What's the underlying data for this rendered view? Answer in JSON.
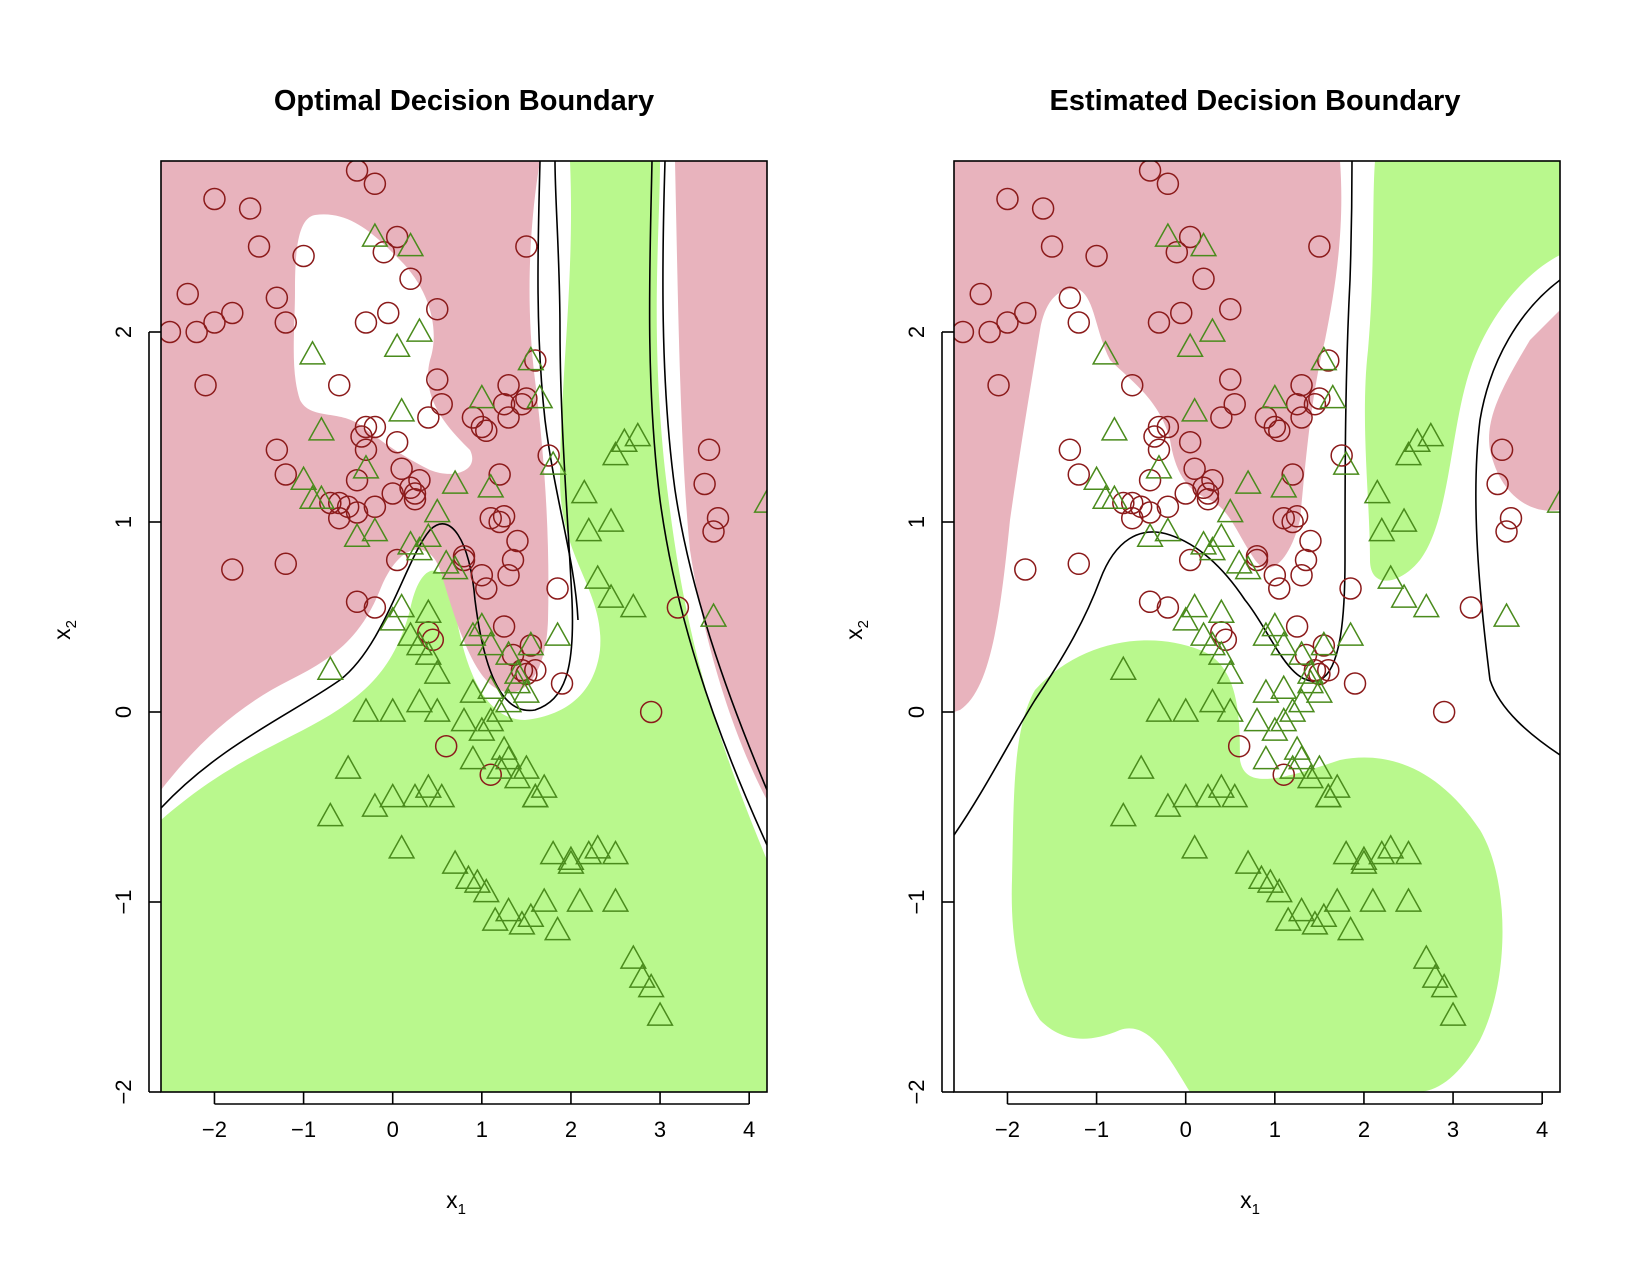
{
  "chart_data": [
    {
      "type": "scatter",
      "title": "Optimal Decision Boundary",
      "xlabel_main": "x",
      "xlabel_sub": "1",
      "ylabel_main": "x",
      "ylabel_sub": "2",
      "xticks": [
        "−2",
        "−1",
        "0",
        "1",
        "2",
        "3",
        "4"
      ],
      "yticks": [
        "−2",
        "−1",
        "0",
        "1",
        "2"
      ],
      "xlim": [
        -2.6,
        4.2
      ],
      "ylim": [
        -2.0,
        2.9
      ],
      "grid": false,
      "region_colors": {
        "class_1": "#e8b3bd",
        "class_2": "#b9f88d"
      },
      "marker_colors": {
        "class_1": "#8b1a1a",
        "class_2": "#4a8b1c"
      },
      "series": [
        {
          "marker": "circle",
          "x": [
            -2.5,
            -2.0,
            -1.6,
            -1.5,
            -0.4,
            -0.2,
            0.05,
            -0.05,
            -1.0,
            -2.3,
            -2.0,
            -1.8,
            -2.2,
            -1.3,
            -1.2,
            -2.1,
            -0.3,
            -0.1,
            0.2,
            0.5,
            1.5,
            -1.3,
            -1.2,
            -0.6,
            0.5,
            0.55,
            0.4,
            0.9,
            1.0,
            1.3,
            1.5,
            1.6,
            1.75,
            1.2,
            -0.3,
            -0.2,
            0.1,
            0.05,
            0.25,
            -0.4,
            -0.5,
            -0.6,
            -0.7,
            -0.4,
            -0.2,
            0.0,
            0.2,
            1.3,
            1.25,
            1.45,
            1.05,
            1.1,
            1.2,
            1.25,
            1.4,
            0.8,
            1.0,
            1.05,
            1.3,
            1.35,
            1.85,
            1.25,
            1.35,
            1.45,
            1.5,
            1.6,
            1.55,
            1.9,
            0.4,
            0.45,
            -0.4,
            -0.2,
            0.6,
            1.1,
            2.9,
            3.2,
            -1.8,
            -1.2,
            3.5,
            3.55,
            3.65,
            3.6,
            0.05,
            0.25,
            0.3,
            0.8,
            -0.6,
            -0.3,
            -0.35
          ],
          "y": [
            2.0,
            2.7,
            2.65,
            2.45,
            2.85,
            2.78,
            2.5,
            2.1,
            2.4,
            2.2,
            2.05,
            2.1,
            2.0,
            2.18,
            2.05,
            1.72,
            2.05,
            2.42,
            2.28,
            2.12,
            2.45,
            1.38,
            1.25,
            1.72,
            1.75,
            1.62,
            1.55,
            1.55,
            1.5,
            1.55,
            1.65,
            1.85,
            1.35,
            1.25,
            1.38,
            1.5,
            1.28,
            1.42,
            1.12,
            1.22,
            1.08,
            1.02,
            1.1,
            1.05,
            1.08,
            1.15,
            1.18,
            1.72,
            1.62,
            1.62,
            1.48,
            1.02,
            1.0,
            1.03,
            0.9,
            0.8,
            0.72,
            0.65,
            0.72,
            0.8,
            0.65,
            0.45,
            0.3,
            0.22,
            0.2,
            0.22,
            0.35,
            0.15,
            0.42,
            0.38,
            0.58,
            0.55,
            -0.18,
            -0.33,
            0.0,
            0.55,
            0.75,
            0.78,
            1.2,
            1.38,
            1.02,
            0.95,
            0.8,
            1.15,
            1.22,
            0.82,
            1.1,
            1.5,
            1.45
          ]
        },
        {
          "marker": "triangle",
          "x": [
            -0.2,
            0.2,
            -0.9,
            0.05,
            0.3,
            -0.8,
            0.1,
            -0.3,
            -1.0,
            -0.9,
            -0.8,
            0.5,
            0.4,
            -0.2,
            -0.4,
            0.2,
            0.3,
            -0.7,
            0.1,
            0.0,
            0.2,
            0.4,
            0.3,
            0.4,
            0.5,
            0.6,
            0.7,
            0.9,
            1.1,
            1.3,
            1.4,
            1.5,
            1.3,
            1.2,
            1.1,
            1.0,
            0.9,
            1.2,
            1.3,
            1.4,
            1.5,
            1.6,
            1.7,
            1.8,
            2.0,
            2.2,
            2.3,
            2.5,
            2.5,
            2.7,
            2.8,
            2.9,
            3.0,
            3.6,
            4.2,
            -0.3,
            -0.5,
            -0.7,
            -0.2,
            0.0,
            0.1,
            0.25,
            0.4,
            0.55,
            0.7,
            0.85,
            0.95,
            1.05,
            1.15,
            1.3,
            1.45,
            1.55,
            1.7,
            1.85,
            2.0,
            2.1,
            2.3,
            2.45,
            0.0,
            0.3,
            0.5,
            0.8,
            0.9,
            1.1,
            1.25,
            1.6,
            1.8,
            2.2,
            2.5,
            1.1,
            2.6,
            2.75,
            2.7,
            1.4,
            1.55,
            1.85,
            2.15,
            2.45,
            1.0,
            1.55,
            1.65,
            1.0,
            0.7
          ],
          "y": [
            2.5,
            2.45,
            1.88,
            1.92,
            2.0,
            1.48,
            1.58,
            1.28,
            1.22,
            1.12,
            1.12,
            1.05,
            0.92,
            0.95,
            0.92,
            0.88,
            0.85,
            0.22,
            0.55,
            0.48,
            0.4,
            0.52,
            0.35,
            0.3,
            0.2,
            0.78,
            0.75,
            0.4,
            0.35,
            0.3,
            0.2,
            0.1,
            0.05,
            0.0,
            -0.05,
            -0.1,
            -0.25,
            -0.3,
            -0.25,
            -0.35,
            -0.3,
            -0.45,
            -0.4,
            -0.75,
            -0.8,
            -0.75,
            -0.72,
            -1.0,
            -0.75,
            -1.3,
            -1.4,
            -1.45,
            -1.6,
            0.5,
            1.1,
            0.0,
            -0.3,
            -0.55,
            -0.5,
            -0.45,
            -0.72,
            -0.45,
            -0.4,
            -0.45,
            -0.8,
            -0.88,
            -0.9,
            -0.95,
            -1.1,
            -1.05,
            -1.12,
            -1.08,
            -1.0,
            -1.15,
            -0.78,
            -1.0,
            0.7,
            0.6,
            0.0,
            0.05,
            0.0,
            -0.05,
            0.1,
            0.12,
            -0.2,
            -0.45,
            1.3,
            0.95,
            1.35,
            1.18,
            1.42,
            1.45,
            0.55,
            0.15,
            0.35,
            0.4,
            1.15,
            1.0,
            0.45,
            1.85,
            1.65,
            1.65,
            1.2
          ]
        }
      ]
    },
    {
      "type": "scatter",
      "title": "Estimated Decision Boundary",
      "xlabel_main": "x",
      "xlabel_sub": "1",
      "ylabel_main": "x",
      "ylabel_sub": "2",
      "xticks": [
        "−2",
        "−1",
        "0",
        "1",
        "2",
        "3",
        "4"
      ],
      "yticks": [
        "−2",
        "−1",
        "0",
        "1",
        "2"
      ],
      "xlim": [
        -2.6,
        4.2
      ],
      "ylim": [
        -2.0,
        2.9
      ],
      "grid": false,
      "region_colors": {
        "class_1": "#e8b3bd",
        "class_2": "#b9f88d"
      },
      "marker_colors": {
        "class_1": "#8b1a1a",
        "class_2": "#4a8b1c"
      },
      "series": [
        {
          "marker": "circle",
          "x": [
            -2.5,
            -2.0,
            -1.6,
            -1.5,
            -0.4,
            -0.2,
            0.05,
            -0.05,
            -1.0,
            -2.3,
            -2.0,
            -1.8,
            -2.2,
            -1.3,
            -1.2,
            -2.1,
            -0.3,
            -0.1,
            0.2,
            0.5,
            1.5,
            -1.3,
            -1.2,
            -0.6,
            0.5,
            0.55,
            0.4,
            0.9,
            1.0,
            1.3,
            1.5,
            1.6,
            1.75,
            1.2,
            -0.3,
            -0.2,
            0.1,
            0.05,
            0.25,
            -0.4,
            -0.5,
            -0.6,
            -0.7,
            -0.4,
            -0.2,
            0.0,
            0.2,
            1.3,
            1.25,
            1.45,
            1.05,
            1.1,
            1.2,
            1.25,
            1.4,
            0.8,
            1.0,
            1.05,
            1.3,
            1.35,
            1.85,
            1.25,
            1.35,
            1.45,
            1.5,
            1.6,
            1.55,
            1.9,
            0.4,
            0.45,
            -0.4,
            -0.2,
            0.6,
            1.1,
            2.9,
            3.2,
            -1.8,
            -1.2,
            3.5,
            3.55,
            3.65,
            3.6,
            0.05,
            0.25,
            0.3,
            0.8,
            -0.6,
            -0.3,
            -0.35
          ],
          "y": [
            2.0,
            2.7,
            2.65,
            2.45,
            2.85,
            2.78,
            2.5,
            2.1,
            2.4,
            2.2,
            2.05,
            2.1,
            2.0,
            2.18,
            2.05,
            1.72,
            2.05,
            2.42,
            2.28,
            2.12,
            2.45,
            1.38,
            1.25,
            1.72,
            1.75,
            1.62,
            1.55,
            1.55,
            1.5,
            1.55,
            1.65,
            1.85,
            1.35,
            1.25,
            1.38,
            1.5,
            1.28,
            1.42,
            1.12,
            1.22,
            1.08,
            1.02,
            1.1,
            1.05,
            1.08,
            1.15,
            1.18,
            1.72,
            1.62,
            1.62,
            1.48,
            1.02,
            1.0,
            1.03,
            0.9,
            0.8,
            0.72,
            0.65,
            0.72,
            0.8,
            0.65,
            0.45,
            0.3,
            0.22,
            0.2,
            0.22,
            0.35,
            0.15,
            0.42,
            0.38,
            0.58,
            0.55,
            -0.18,
            -0.33,
            0.0,
            0.55,
            0.75,
            0.78,
            1.2,
            1.38,
            1.02,
            0.95,
            0.8,
            1.15,
            1.22,
            0.82,
            1.1,
            1.5,
            1.45
          ]
        },
        {
          "marker": "triangle",
          "x": [
            -0.2,
            0.2,
            -0.9,
            0.05,
            0.3,
            -0.8,
            0.1,
            -0.3,
            -1.0,
            -0.9,
            -0.8,
            0.5,
            0.4,
            -0.2,
            -0.4,
            0.2,
            0.3,
            -0.7,
            0.1,
            0.0,
            0.2,
            0.4,
            0.3,
            0.4,
            0.5,
            0.6,
            0.7,
            0.9,
            1.1,
            1.3,
            1.4,
            1.5,
            1.3,
            1.2,
            1.1,
            1.0,
            0.9,
            1.2,
            1.3,
            1.4,
            1.5,
            1.6,
            1.7,
            1.8,
            2.0,
            2.2,
            2.3,
            2.5,
            2.5,
            2.7,
            2.8,
            2.9,
            3.0,
            3.6,
            4.2,
            -0.3,
            -0.5,
            -0.7,
            -0.2,
            0.0,
            0.1,
            0.25,
            0.4,
            0.55,
            0.7,
            0.85,
            0.95,
            1.05,
            1.15,
            1.3,
            1.45,
            1.55,
            1.7,
            1.85,
            2.0,
            2.1,
            2.3,
            2.45,
            0.0,
            0.3,
            0.5,
            0.8,
            0.9,
            1.1,
            1.25,
            1.6,
            1.8,
            2.2,
            2.5,
            1.1,
            2.6,
            2.75,
            2.7,
            1.4,
            1.55,
            1.85,
            2.15,
            2.45,
            1.0,
            1.55,
            1.65,
            1.0,
            0.7
          ],
          "y": [
            2.5,
            2.45,
            1.88,
            1.92,
            2.0,
            1.48,
            1.58,
            1.28,
            1.22,
            1.12,
            1.12,
            1.05,
            0.92,
            0.95,
            0.92,
            0.88,
            0.85,
            0.22,
            0.55,
            0.48,
            0.4,
            0.52,
            0.35,
            0.3,
            0.2,
            0.78,
            0.75,
            0.4,
            0.35,
            0.3,
            0.2,
            0.1,
            0.05,
            0.0,
            -0.05,
            -0.1,
            -0.25,
            -0.3,
            -0.25,
            -0.35,
            -0.3,
            -0.45,
            -0.4,
            -0.75,
            -0.8,
            -0.75,
            -0.72,
            -1.0,
            -0.75,
            -1.3,
            -1.4,
            -1.45,
            -1.6,
            0.5,
            1.1,
            0.0,
            -0.3,
            -0.55,
            -0.5,
            -0.45,
            -0.72,
            -0.45,
            -0.4,
            -0.45,
            -0.8,
            -0.88,
            -0.9,
            -0.95,
            -1.1,
            -1.05,
            -1.12,
            -1.08,
            -1.0,
            -1.15,
            -0.78,
            -1.0,
            0.7,
            0.6,
            0.0,
            0.05,
            0.0,
            -0.05,
            0.1,
            0.12,
            -0.2,
            -0.45,
            1.3,
            0.95,
            1.35,
            1.18,
            1.42,
            1.45,
            0.55,
            0.15,
            0.35,
            0.4,
            1.15,
            1.0,
            0.45,
            1.85,
            1.65,
            1.65,
            1.2
          ]
        }
      ]
    }
  ]
}
